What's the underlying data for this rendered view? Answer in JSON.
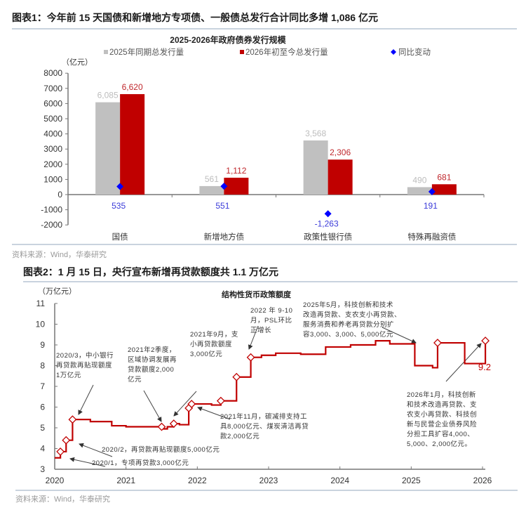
{
  "figure1": {
    "title": "图表1：今年前 15 天国债和新增地方专项债、一般债总发行合计同比多增 1,086 亿元",
    "source": "资料来源：Wind，华泰研究"
  },
  "figure2": {
    "title": "图表2：1 月 15 日，央行宣布新增再贷款额度共 1.1 万亿元",
    "source": "资料来源：Wind，华泰研究"
  },
  "chart_data": [
    {
      "type": "bar",
      "title": "2025-2026年政府债券发行规模",
      "ylabel": "（亿元）",
      "xlabel": "",
      "ylim": [
        -2000,
        8000
      ],
      "yticks": [
        "8000",
        "7000",
        "6000",
        "5000",
        "4000",
        "3000",
        "2000",
        "1000",
        "0",
        "-1000",
        "-2000"
      ],
      "categories": [
        "国债",
        "新增地方债",
        "政策性银行债",
        "特殊再融资债"
      ],
      "series": [
        {
          "name": "2025年同期总发行量",
          "type": "bar",
          "color": "#c0c0c0",
          "values": [
            6085,
            561,
            3568,
            490
          ],
          "labels": [
            "6,085",
            "561",
            "3,568",
            "490"
          ]
        },
        {
          "name": "2026年初至今总发行量",
          "type": "bar",
          "color": "#c00000",
          "values": [
            6620,
            1112,
            2306,
            681
          ],
          "labels": [
            "6,620",
            "1,112",
            "2,306",
            "681"
          ]
        },
        {
          "name": "同比变动",
          "type": "scatter",
          "marker": "diamond",
          "color": "#0000ff",
          "values": [
            535,
            551,
            -1263,
            191
          ],
          "labels": [
            "535",
            "551",
            "-1,263",
            "191"
          ]
        }
      ],
      "legend_position": "top",
      "grid": false
    },
    {
      "type": "line",
      "title": "结构性货币政策额度",
      "ylabel": "（万亿元）",
      "xlabel": "",
      "ylim": [
        3,
        11
      ],
      "yticks": [
        "11",
        "10",
        "9",
        "8",
        "7",
        "6",
        "5",
        "4",
        "3"
      ],
      "xticks": [
        "2020",
        "2021",
        "2022",
        "2023",
        "2024",
        "2025",
        "2026"
      ],
      "xlim": [
        2020,
        2026
      ],
      "line_color": "#c00000",
      "series": [
        {
          "name": "结构性货币政策额度",
          "step": true,
          "x": [
            2020.0,
            2020.08,
            2020.16,
            2020.25,
            2020.5,
            2020.8,
            2021.0,
            2021.5,
            2021.58,
            2021.67,
            2021.75,
            2021.88,
            2021.92,
            2022.2,
            2022.33,
            2022.55,
            2022.75,
            2022.9,
            2023.1,
            2023.45,
            2023.8,
            2024.15,
            2024.5,
            2024.7,
            2025.05,
            2025.3,
            2025.37,
            2025.75,
            2026.0,
            2026.04
          ],
          "y": [
            3.55,
            3.85,
            4.4,
            5.4,
            5.3,
            5.1,
            5.05,
            4.95,
            5.05,
            5.2,
            5.15,
            5.95,
            6.15,
            6.1,
            6.3,
            7.45,
            8.4,
            8.5,
            8.6,
            8.55,
            8.9,
            9.0,
            9.2,
            9.05,
            8.0,
            7.9,
            9.1,
            8.1,
            8.1,
            9.2
          ]
        }
      ],
      "markers": [
        {
          "x": 2020.08,
          "y": 3.85
        },
        {
          "x": 2020.16,
          "y": 4.4
        },
        {
          "x": 2020.25,
          "y": 5.4
        },
        {
          "x": 2021.5,
          "y": 5.05
        },
        {
          "x": 2021.67,
          "y": 5.2
        },
        {
          "x": 2021.88,
          "y": 5.95
        },
        {
          "x": 2021.92,
          "y": 6.15
        },
        {
          "x": 2022.33,
          "y": 6.3
        },
        {
          "x": 2022.55,
          "y": 7.45
        },
        {
          "x": 2022.75,
          "y": 8.4
        },
        {
          "x": 2025.37,
          "y": 9.1
        },
        {
          "x": 2026.04,
          "y": 9.2
        }
      ],
      "end_label": "9.2",
      "annotations": [
        {
          "id": "a2020_3",
          "text": "2020/3，中小银行再贷款再贴现额度1万亿元"
        },
        {
          "id": "a2020_2",
          "text": "2020/2，再贷款再贴现额度5,000亿元"
        },
        {
          "id": "a2020_1",
          "text": "2020/1，专项再贷款3,000亿元"
        },
        {
          "id": "a2021_q2",
          "text": "2021年2季度，区域协调发展再贷款额度2,000亿元"
        },
        {
          "id": "a2021_9",
          "text": "2021年9月，支小再贷款额度3,000亿元"
        },
        {
          "id": "a2021_11",
          "text": "2021年11月，碳减排支持工具8,000亿元、煤炭清洁再贷款2,000亿元"
        },
        {
          "id": "a2022_9",
          "text": "2022年9-10月，PSL环比正增长"
        },
        {
          "id": "a2025_5",
          "text": "2025年5月，科技创新和技术改造再贷款、支农支小再贷款、服务消费和养老再贷款分别扩容3,000、3,000、5,000亿元"
        },
        {
          "id": "a2026_1",
          "text": "2026年1月，科技创新和技术改造再贷款、支农支小再贷款、科技创新与民营企业债券风险分担工具扩容4,000、5,000、2,000亿元。"
        }
      ],
      "grid": false
    }
  ],
  "ui": {
    "fig1": {
      "chart_title": "2025-2026年政府债券发行规模",
      "unit": "（亿元）",
      "legend": [
        "2025年同期总发行量",
        "2026年初至今总发行量",
        "同比变动"
      ]
    },
    "fig2": {
      "chart_title": "结构性货币政策额度",
      "unit": "（万亿元）",
      "end_label": "9.2",
      "ann": {
        "a2020_3": [
          "2020/3，中小银行",
          "再贷款再贴现额度",
          "1万亿元"
        ],
        "a2020_2": "2020/2，再贷款再贴现额度5,000亿元",
        "a2020_1": "2020/1，专项再贷款3,000亿元",
        "a2021_q2": [
          "2021年2季度，",
          "区域协调发展再",
          "贷款额度2,000",
          "亿元"
        ],
        "a2021_9": [
          "2021年9月，支",
          "小再贷款额度",
          "3,000亿元"
        ],
        "a2021_11": [
          "2021年11月，碳减排支持工",
          "具8,000亿元、煤炭清洁再贷",
          "款2,000亿元"
        ],
        "a2022_9": [
          "2022 年 9-10",
          "月，PSL环比",
          "正增长"
        ],
        "a2025_5": [
          "2025年5月，科技创新和技术",
          "改造再贷款、支农支小再贷款、",
          "服务消费和养老再贷款分别扩",
          "容3,000、3,000、5,000亿元"
        ],
        "a2026_1": [
          "2026年1月，科技创新",
          "和技术改造再贷款、支",
          "农支小再贷款、科技创",
          "新与民营企业债券风险",
          "分担工具扩容4,000、",
          "5,000、2,000亿元。"
        ]
      }
    }
  }
}
